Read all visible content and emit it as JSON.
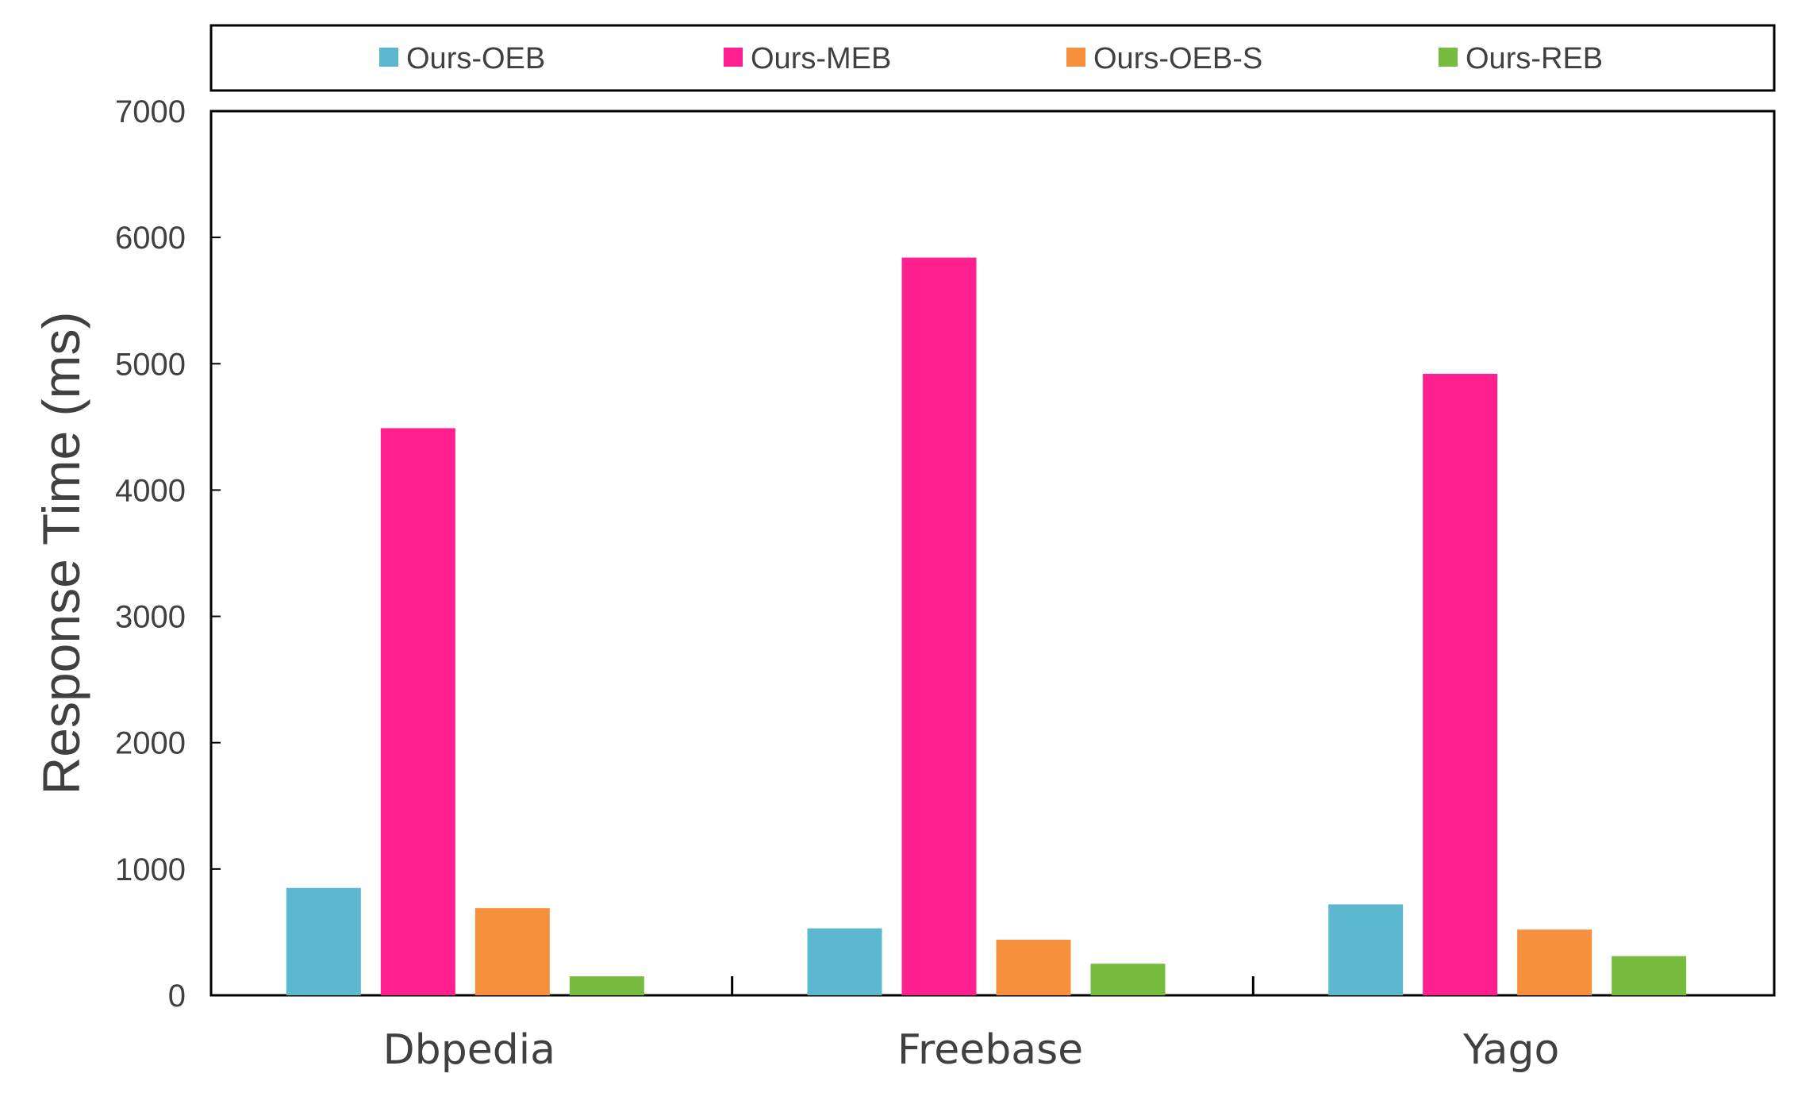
{
  "chart_data": {
    "type": "bar",
    "title": "",
    "xlabel": "",
    "ylabel": "Response Time (ms)",
    "ylim": [
      0,
      7000
    ],
    "yticks": [
      0,
      1000,
      2000,
      3000,
      4000,
      5000,
      6000,
      7000
    ],
    "categories": [
      "Dbpedia",
      "Freebase",
      "Yago"
    ],
    "series": [
      {
        "name": "Ours-OEB",
        "color": "#5BB8CF",
        "values": [
          850,
          530,
          720
        ]
      },
      {
        "name": "Ours-MEB",
        "color": "#FF1F8E",
        "values": [
          4490,
          5840,
          4920
        ]
      },
      {
        "name": "Ours-OEB-S",
        "color": "#F7903D",
        "values": [
          690,
          440,
          520
        ]
      },
      {
        "name": "Ours-REB",
        "color": "#77BC3F",
        "values": [
          150,
          250,
          310
        ]
      }
    ],
    "legend": "top",
    "grid": false
  }
}
